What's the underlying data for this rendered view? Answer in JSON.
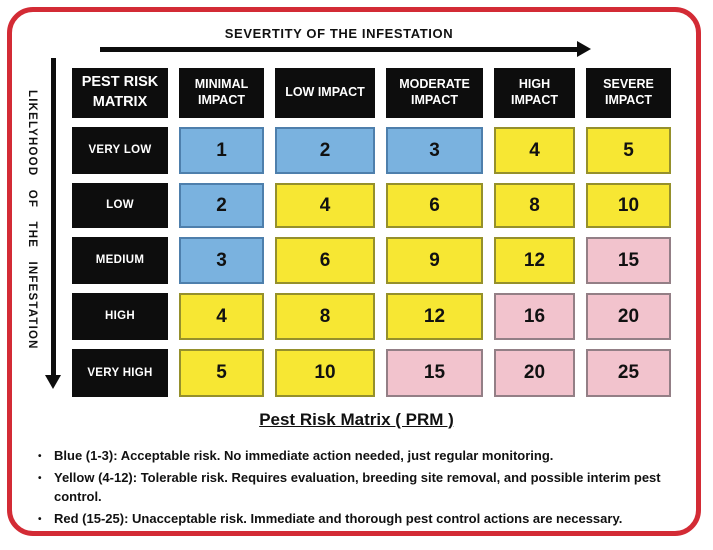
{
  "colors": {
    "frame_red": "#D32B35",
    "ink": "#0d0d0d",
    "blue": "#7AB2DF",
    "yellow": "#F7E733",
    "pink": "#F2C3CD"
  },
  "axes": {
    "top_label": "SEVERTITY OF THE INFESTATION",
    "left_label": "LIKELYHOOD OF THE INFESTATION"
  },
  "matrix": {
    "corner": "PEST RISK MATRIX",
    "col_headers": [
      "MINIMAL IMPACT",
      "LOW IMPACT",
      "MODERATE IMPACT",
      "HIGH IMPACT",
      "SEVERE IMPACT"
    ],
    "rows": [
      {
        "label": "VERY LOW",
        "cells": [
          {
            "value": 1,
            "color": "blue"
          },
          {
            "value": 2,
            "color": "blue"
          },
          {
            "value": 3,
            "color": "blue"
          },
          {
            "value": 4,
            "color": "yellow"
          },
          {
            "value": 5,
            "color": "yellow"
          }
        ]
      },
      {
        "label": "LOW",
        "cells": [
          {
            "value": 2,
            "color": "blue"
          },
          {
            "value": 4,
            "color": "yellow"
          },
          {
            "value": 6,
            "color": "yellow"
          },
          {
            "value": 8,
            "color": "yellow"
          },
          {
            "value": 10,
            "color": "yellow"
          }
        ]
      },
      {
        "label": "MEDIUM",
        "cells": [
          {
            "value": 3,
            "color": "blue"
          },
          {
            "value": 6,
            "color": "yellow"
          },
          {
            "value": 9,
            "color": "yellow"
          },
          {
            "value": 12,
            "color": "yellow"
          },
          {
            "value": 15,
            "color": "pink"
          }
        ]
      },
      {
        "label": "HIGH",
        "cells": [
          {
            "value": 4,
            "color": "yellow"
          },
          {
            "value": 8,
            "color": "yellow"
          },
          {
            "value": 12,
            "color": "yellow"
          },
          {
            "value": 16,
            "color": "pink"
          },
          {
            "value": 20,
            "color": "pink"
          }
        ]
      },
      {
        "label": "VERY HIGH",
        "cells": [
          {
            "value": 5,
            "color": "yellow"
          },
          {
            "value": 10,
            "color": "yellow"
          },
          {
            "value": 15,
            "color": "pink"
          },
          {
            "value": 20,
            "color": "pink"
          },
          {
            "value": 25,
            "color": "pink"
          }
        ]
      }
    ]
  },
  "caption": "Pest Risk Matrix ( PRM )",
  "legend": {
    "bullet": "•",
    "items": [
      {
        "text": "Blue (1-3): Acceptable risk. No immediate action needed, just regular monitoring."
      },
      {
        "text": "Yellow (4-12): Tolerable risk. Requires evaluation, breeding site removal, and possible interim pest control."
      },
      {
        "text": "Red (15-25): Unacceptable risk. Immediate and thorough pest control actions are necessary."
      }
    ]
  }
}
